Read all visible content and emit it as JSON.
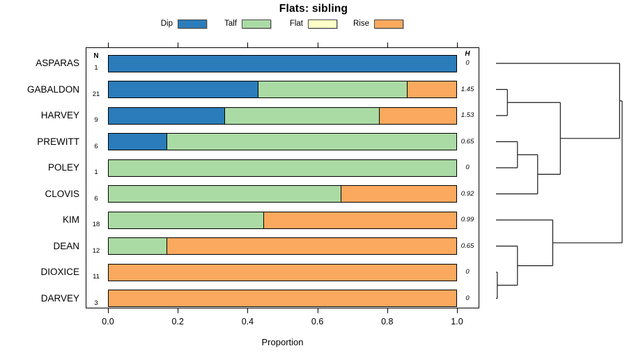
{
  "title": "Flats: sibling",
  "chart_data": {
    "type": "bar",
    "orientation": "horizontal",
    "stacked": true,
    "title": "Flats: sibling",
    "xlabel": "Proportion",
    "xlim": [
      0,
      1
    ],
    "x_ticks": [
      0.0,
      0.2,
      0.4,
      0.6,
      0.8,
      1.0
    ],
    "x_tick_labels": [
      "0.0",
      "0.2",
      "0.4",
      "0.6",
      "0.8",
      "1.0"
    ],
    "grid": false,
    "legend_position": "top",
    "legend": [
      {
        "label": "Dip",
        "color": "#2b7cba"
      },
      {
        "label": "Talf",
        "color": "#abdba4"
      },
      {
        "label": "Flat",
        "color": "#ffffc8"
      },
      {
        "label": "Rise",
        "color": "#fba95e"
      }
    ],
    "columns": {
      "n_header": "N",
      "h_header": "H"
    },
    "rows": [
      {
        "label": "ASPARAS",
        "n": "1",
        "h": "0",
        "segments": {
          "Dip": 1.0,
          "Talf": 0,
          "Flat": 0,
          "Rise": 0
        }
      },
      {
        "label": "GABALDON",
        "n": "21",
        "h": "1.45",
        "segments": {
          "Dip": 0.4286,
          "Talf": 0.4286,
          "Flat": 0,
          "Rise": 0.1428
        }
      },
      {
        "label": "HARVEY",
        "n": "9",
        "h": "1.53",
        "segments": {
          "Dip": 0.3333,
          "Talf": 0.4445,
          "Flat": 0,
          "Rise": 0.2222
        }
      },
      {
        "label": "PREWITT",
        "n": "6",
        "h": "0.65",
        "segments": {
          "Dip": 0.1667,
          "Talf": 0.8333,
          "Flat": 0,
          "Rise": 0
        }
      },
      {
        "label": "POLEY",
        "n": "1",
        "h": "0",
        "segments": {
          "Dip": 0,
          "Talf": 1.0,
          "Flat": 0,
          "Rise": 0
        }
      },
      {
        "label": "CLOVIS",
        "n": "6",
        "h": "0.92",
        "segments": {
          "Dip": 0,
          "Talf": 0.6667,
          "Flat": 0,
          "Rise": 0.3333
        }
      },
      {
        "label": "KIM",
        "n": "18",
        "h": "0.99",
        "segments": {
          "Dip": 0,
          "Talf": 0.4444,
          "Flat": 0,
          "Rise": 0.5556
        }
      },
      {
        "label": "DEAN",
        "n": "12",
        "h": "0.65",
        "segments": {
          "Dip": 0,
          "Talf": 0.1667,
          "Flat": 0,
          "Rise": 0.8333
        }
      },
      {
        "label": "DIOXICE",
        "n": "11",
        "h": "0",
        "segments": {
          "Dip": 0,
          "Talf": 0,
          "Flat": 0,
          "Rise": 1.0
        }
      },
      {
        "label": "DARVEY",
        "n": "3",
        "h": "0",
        "segments": {
          "Dip": 0,
          "Talf": 0,
          "Flat": 0,
          "Rise": 1.0
        }
      }
    ],
    "dendrogram": {
      "leaves": [
        "ASPARAS",
        "GABALDON",
        "HARVEY",
        "PREWITT",
        "POLEY",
        "CLOVIS",
        "KIM",
        "DEAN",
        "DIOXICE",
        "DARVEY"
      ],
      "merges": [
        {
          "id": "m1",
          "a": "GABALDON",
          "b": "HARVEY",
          "pos": 0.09
        },
        {
          "id": "m2",
          "a": "PREWITT",
          "b": "POLEY",
          "pos": 0.17
        },
        {
          "id": "m3",
          "a": "m2",
          "b": "CLOVIS",
          "pos": 0.33
        },
        {
          "id": "m4",
          "a": "m1",
          "b": "m3",
          "pos": 0.51
        },
        {
          "id": "m5",
          "a": "ASPARAS",
          "b": "m4",
          "pos": 0.98
        },
        {
          "id": "m6",
          "a": "DIOXICE",
          "b": "DARVEY",
          "pos": 0.01
        },
        {
          "id": "m7",
          "a": "DEAN",
          "b": "m6",
          "pos": 0.17
        },
        {
          "id": "m8",
          "a": "KIM",
          "b": "m7",
          "pos": 0.45
        },
        {
          "id": "root",
          "a": "m5",
          "b": "m8",
          "pos": 1.0
        }
      ],
      "line_color": "#1a1a1a"
    }
  }
}
